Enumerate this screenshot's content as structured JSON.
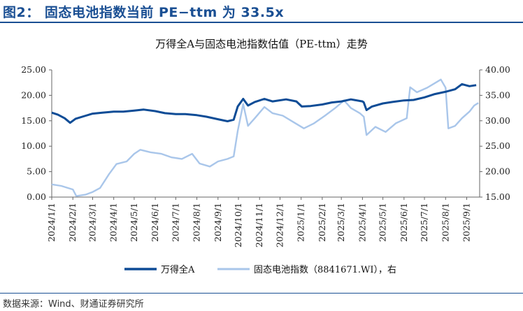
{
  "header": {
    "title": "图2：  固态电池指数当前 PE−ttm 为 33.5x"
  },
  "footer": {
    "source": "数据来源：Wind、财通证券研究所"
  },
  "colors": {
    "header_blue": "#1a4f93",
    "series_dark": "#0e4c96",
    "series_light": "#a9c6ea"
  },
  "chart_data": {
    "type": "line",
    "title": "万得全A与固态电池指数估值（PE-ttm）走势",
    "xlabel": "",
    "ylabel_left": "",
    "ylabel_right": "",
    "x_ticks": [
      "2024/1/1",
      "2024/2/1",
      "2024/3/1",
      "2024/4/1",
      "2024/5/1",
      "2024/6/1",
      "2024/7/1",
      "2024/8/1",
      "2024/9/1",
      "2024/10/1",
      "2024/11/1",
      "2024/12/1",
      "2025/1/1",
      "2025/2/1",
      "2025/3/1",
      "2025/4/1",
      "2025/5/1",
      "2025/6/1",
      "2025/7/1",
      "2025/8/1",
      "2025/9/1"
    ],
    "y_left_ticks": [
      "0.00",
      "5.00",
      "10.00",
      "15.00",
      "20.00",
      "25.00"
    ],
    "y_right_ticks": [
      "15.00",
      "20.00",
      "25.00",
      "30.00",
      "35.00",
      "40.00"
    ],
    "y_left_lim": [
      0,
      25
    ],
    "y_right_lim": [
      15,
      40
    ],
    "x_range": [
      "2024/1/1",
      "2025/9/20"
    ],
    "grid": false,
    "legend_position": "bottom",
    "series": [
      {
        "name": "万得全A",
        "axis": "left",
        "points": [
          [
            "2024/1/1",
            16.6
          ],
          [
            "2024/1/10",
            16.2
          ],
          [
            "2024/1/20",
            15.5
          ],
          [
            "2024/1/28",
            14.6
          ],
          [
            "2024/2/5",
            15.4
          ],
          [
            "2024/2/20",
            16.0
          ],
          [
            "2024/3/1",
            16.4
          ],
          [
            "2024/3/15",
            16.6
          ],
          [
            "2024/4/1",
            16.8
          ],
          [
            "2024/4/15",
            16.8
          ],
          [
            "2024/5/1",
            17.0
          ],
          [
            "2024/5/15",
            17.2
          ],
          [
            "2024/6/1",
            16.9
          ],
          [
            "2024/6/15",
            16.5
          ],
          [
            "2024/7/1",
            16.3
          ],
          [
            "2024/7/15",
            16.3
          ],
          [
            "2024/8/1",
            16.1
          ],
          [
            "2024/8/15",
            15.8
          ],
          [
            "2024/9/1",
            15.3
          ],
          [
            "2024/9/15",
            14.9
          ],
          [
            "2024/9/24",
            15.2
          ],
          [
            "2024/9/30",
            17.8
          ],
          [
            "2024/10/8",
            19.3
          ],
          [
            "2024/10/15",
            18.0
          ],
          [
            "2024/10/25",
            18.7
          ],
          [
            "2024/11/8",
            19.3
          ],
          [
            "2024/11/20",
            18.8
          ],
          [
            "2024/12/10",
            19.2
          ],
          [
            "2024/12/25",
            18.8
          ],
          [
            "2025/1/2",
            17.8
          ],
          [
            "2025/1/15",
            17.9
          ],
          [
            "2025/2/1",
            18.2
          ],
          [
            "2025/2/15",
            18.6
          ],
          [
            "2025/3/1",
            18.8
          ],
          [
            "2025/3/15",
            19.2
          ],
          [
            "2025/4/1",
            18.8
          ],
          [
            "2025/4/3",
            18.6
          ],
          [
            "2025/4/7",
            17.1
          ],
          [
            "2025/4/15",
            17.8
          ],
          [
            "2025/5/1",
            18.4
          ],
          [
            "2025/5/15",
            18.7
          ],
          [
            "2025/6/1",
            19.0
          ],
          [
            "2025/6/15",
            19.1
          ],
          [
            "2025/7/1",
            19.6
          ],
          [
            "2025/7/15",
            20.2
          ],
          [
            "2025/8/1",
            20.7
          ],
          [
            "2025/8/15",
            21.2
          ],
          [
            "2025/8/25",
            22.2
          ],
          [
            "2025/9/5",
            21.8
          ],
          [
            "2025/9/15",
            22.0
          ]
        ]
      },
      {
        "name": "固态电池指数（8841671.WI），右",
        "axis": "right",
        "points": [
          [
            "2024/1/1",
            17.5
          ],
          [
            "2024/1/15",
            17.2
          ],
          [
            "2024/2/1",
            16.5
          ],
          [
            "2024/2/6",
            15.2
          ],
          [
            "2024/2/20",
            15.5
          ],
          [
            "2024/3/1",
            16.0
          ],
          [
            "2024/3/12",
            16.8
          ],
          [
            "2024/3/25",
            19.5
          ],
          [
            "2024/4/5",
            21.5
          ],
          [
            "2024/4/20",
            22.0
          ],
          [
            "2024/5/1",
            23.5
          ],
          [
            "2024/5/10",
            24.3
          ],
          [
            "2024/5/25",
            23.8
          ],
          [
            "2024/6/10",
            23.5
          ],
          [
            "2024/6/25",
            22.8
          ],
          [
            "2024/7/10",
            22.5
          ],
          [
            "2024/7/25",
            23.5
          ],
          [
            "2024/8/5",
            21.6
          ],
          [
            "2024/8/20",
            21.0
          ],
          [
            "2024/9/1",
            22.0
          ],
          [
            "2024/9/15",
            22.5
          ],
          [
            "2024/9/24",
            23.0
          ],
          [
            "2024/9/30",
            28.0
          ],
          [
            "2024/10/8",
            33.3
          ],
          [
            "2024/10/15",
            29.0
          ],
          [
            "2024/10/25",
            30.5
          ],
          [
            "2024/11/8",
            32.7
          ],
          [
            "2024/11/20",
            31.5
          ],
          [
            "2024/12/5",
            31.0
          ],
          [
            "2024/12/20",
            29.8
          ],
          [
            "2025/1/5",
            28.5
          ],
          [
            "2025/1/20",
            29.5
          ],
          [
            "2025/2/5",
            31.0
          ],
          [
            "2025/2/20",
            32.5
          ],
          [
            "2025/3/5",
            34.0
          ],
          [
            "2025/3/15",
            32.5
          ],
          [
            "2025/3/28",
            31.5
          ],
          [
            "2025/4/3",
            30.8
          ],
          [
            "2025/4/7",
            27.2
          ],
          [
            "2025/4/20",
            28.8
          ],
          [
            "2025/5/5",
            27.8
          ],
          [
            "2025/5/20",
            29.5
          ],
          [
            "2025/6/5",
            30.5
          ],
          [
            "2025/6/10",
            36.6
          ],
          [
            "2025/6/20",
            35.6
          ],
          [
            "2025/7/5",
            36.5
          ],
          [
            "2025/7/15",
            37.3
          ],
          [
            "2025/7/25",
            38.1
          ],
          [
            "2025/8/1",
            36.5
          ],
          [
            "2025/8/5",
            28.5
          ],
          [
            "2025/8/15",
            29.0
          ],
          [
            "2025/8/25",
            30.5
          ],
          [
            "2025/9/5",
            31.8
          ],
          [
            "2025/9/12",
            33.0
          ],
          [
            "2025/9/18",
            33.5
          ]
        ]
      }
    ],
    "legend": [
      {
        "label": "万得全A",
        "color": "#0e4c96"
      },
      {
        "label": "固态电池指数（8841671.WI），右",
        "color": "#a9c6ea"
      }
    ]
  }
}
